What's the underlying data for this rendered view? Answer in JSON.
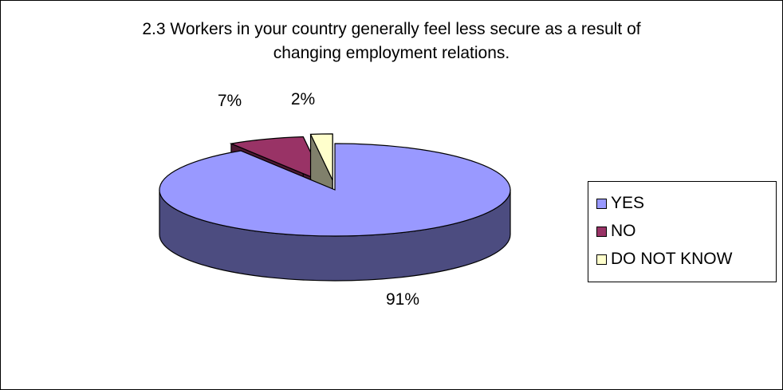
{
  "chart_data": {
    "type": "pie",
    "title": "2.3 Workers in your country generally feel less secure as a result of\nchanging employment relations.",
    "categories": [
      "YES",
      "NO",
      "DO NOT KNOW"
    ],
    "values": [
      91,
      7,
      2
    ],
    "data_labels": [
      "91%",
      "7%",
      "2%"
    ],
    "colors": [
      "#9999FF",
      "#993366",
      "#FFFFCC"
    ],
    "side_colors": [
      "#4C4C80",
      "#4C1933",
      "#80806B"
    ],
    "legend_position": "right",
    "style": "3d-exploded"
  }
}
